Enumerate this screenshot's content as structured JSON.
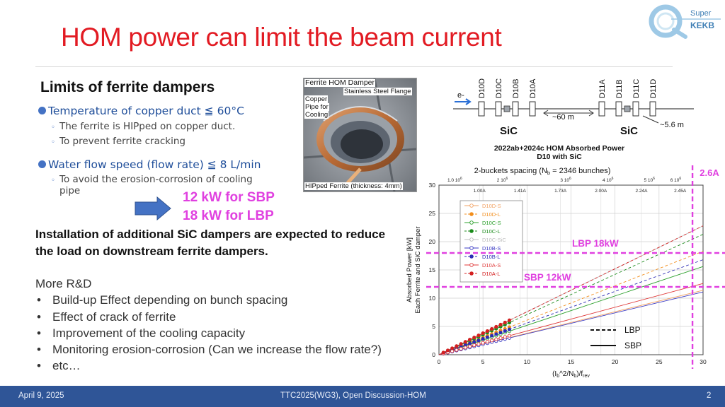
{
  "title": "HOM power can limit the beam current",
  "logo": {
    "line1": "Super",
    "line2": "KEKB"
  },
  "section_heading": "Limits of ferrite dampers",
  "bullets": [
    {
      "text": "Temperature of copper duct ≦ 60°C",
      "subs": [
        "The ferrite is HIPped on copper duct.",
        "To prevent ferrite cracking"
      ]
    },
    {
      "text": "Water flow speed (flow rate) ≦ 8 L/min",
      "subs": [
        "To avoid the erosion-corrosion of cooling",
        "pipe"
      ]
    }
  ],
  "limits": {
    "sbp": "12 kW for SBP",
    "lbp": "18 kW for LBP"
  },
  "install_text": "Installation of additional SiC dampers are expected to reduce the load on downstream ferrite dampers.",
  "rnd": {
    "heading": "More R&D",
    "items": [
      "Build-up Effect depending on bunch spacing",
      "Effect of crack of ferrite",
      "Improvement of the cooling capacity",
      "Monitoring erosion-corrosion (Can we increase the flow rate?)",
      "etc…"
    ]
  },
  "photo": {
    "title": "Ferrite HOM Damper",
    "flange": "Stainless Steel Flange",
    "copper": [
      "Copper",
      "Pipe for",
      "Cooling"
    ],
    "ferrite": "HIPped Ferrite (thickness: 4mm)"
  },
  "schematic": {
    "beam": "e-",
    "dampers": [
      "D10D",
      "D10C",
      "D10B",
      "D10A",
      "D11A",
      "D11B",
      "D11C",
      "D11D"
    ],
    "sic": "SiC",
    "dist1": "~60 m",
    "dist2": "~5.6 m"
  },
  "chart_data": {
    "type": "line",
    "title": "2022ab+2024c HOM Absorbed Power",
    "subtitle": "D10 with SiC",
    "spacing_note": "2-buckets spacing (N",
    "spacing_sub": "b",
    "spacing_rest": " = 2346 bunches)",
    "xlabel": "(I",
    "xlabel_sub1": "b",
    "xlabel_mid": "^2/N",
    "xlabel_sub2": "b",
    "xlabel_end": ")/f",
    "xlabel_sub3": "rev",
    "ylabel_lines": [
      "Absorbed Power [kW]",
      "Each Ferrite and SiC damper"
    ],
    "xlim": [
      0,
      30
    ],
    "ylim": [
      0,
      30
    ],
    "x_ticks": [
      "0",
      "5",
      "10",
      "15",
      "20",
      "25",
      "30"
    ],
    "y_ticks": [
      "0",
      "5",
      "10",
      "15",
      "20",
      "25",
      "30"
    ],
    "top_ticks": [
      {
        "x": 1.8,
        "label": "1.0 10",
        "exp": "6"
      },
      {
        "x": 7.2,
        "label": "2 10",
        "exp": "6"
      },
      {
        "x": 14.4,
        "label": "3 10",
        "exp": "6"
      },
      {
        "x": 19.2,
        "label": "4 10",
        "exp": "6"
      },
      {
        "x": 23.9,
        "label": "5 10",
        "exp": "6"
      },
      {
        "x": 26.9,
        "label": "6 10",
        "exp": "6"
      }
    ],
    "current_ticks": [
      {
        "x": 4.6,
        "label": "1.00A"
      },
      {
        "x": 9.2,
        "label": "1.41A"
      },
      {
        "x": 13.8,
        "label": "1.73A"
      },
      {
        "x": 18.4,
        "label": "2.00A"
      },
      {
        "x": 23.0,
        "label": "2.24A"
      },
      {
        "x": 27.4,
        "label": "2.45A"
      }
    ],
    "series": [
      {
        "name": "D10D-S",
        "color": "#f2a365",
        "dash": false,
        "slope": 0.38
      },
      {
        "name": "D10D-L",
        "color": "#f28e1c",
        "dash": true,
        "slope": 0.61
      },
      {
        "name": "D10C-S",
        "color": "#2ca02c",
        "dash": false,
        "slope": 0.52
      },
      {
        "name": "D10C-L",
        "color": "#1a8a1a",
        "dash": true,
        "slope": 0.71
      },
      {
        "name": "D10C-SiC",
        "color": "#bdbdbd",
        "dash": false,
        "slope": 0.76
      },
      {
        "name": "D10B-S",
        "color": "#3b3bc4",
        "dash": false,
        "slope": 0.37
      },
      {
        "name": "D10B-L",
        "color": "#2d2db5",
        "dash": true,
        "slope": 0.56
      },
      {
        "name": "D10A-S",
        "color": "#e03a3a",
        "dash": false,
        "slope": 0.42
      },
      {
        "name": "D10A-L",
        "color": "#d42020",
        "dash": true,
        "slope": 0.76
      }
    ],
    "markers_until_x": 8,
    "current_limit": {
      "x": 28.8,
      "label": "2.6A"
    },
    "hlines": [
      {
        "y": 18,
        "label": "LBP 18kW"
      },
      {
        "y": 12,
        "label": "SBP 12kW"
      }
    ],
    "line_legend": [
      {
        "label": "LBP",
        "dash": true
      },
      {
        "label": "SBP",
        "dash": false
      }
    ],
    "highlight_color": "#e040e0"
  },
  "footer": {
    "date": "April 9, 2025",
    "center": "TTC2025(WG3), Open Discussion-HOM",
    "page": "2"
  }
}
